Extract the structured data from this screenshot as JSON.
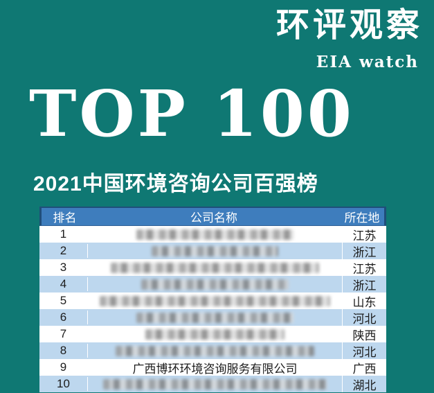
{
  "brand": {
    "title": "环评观察",
    "subtitle": "EIA watch"
  },
  "hero": {
    "title": "TOP 100",
    "subtitle": "2021中国环境咨询公司百强榜"
  },
  "table": {
    "columns": [
      "排名",
      "公司名称",
      "所在地"
    ],
    "rows": [
      {
        "rank": "1",
        "company": "",
        "redacted": true,
        "location": "江苏"
      },
      {
        "rank": "2",
        "company": "",
        "redacted": true,
        "location": "浙江"
      },
      {
        "rank": "3",
        "company": "",
        "redacted": true,
        "location": "江苏"
      },
      {
        "rank": "4",
        "company": "",
        "redacted": true,
        "location": "浙江"
      },
      {
        "rank": "5",
        "company": "",
        "redacted": true,
        "location": "山东"
      },
      {
        "rank": "6",
        "company": "",
        "redacted": true,
        "location": "河北"
      },
      {
        "rank": "7",
        "company": "",
        "redacted": true,
        "location": "陕西"
      },
      {
        "rank": "8",
        "company": "",
        "redacted": true,
        "location": "河北"
      },
      {
        "rank": "9",
        "company": "广西博环环境咨询服务有限公司",
        "redacted": false,
        "location": "广西"
      },
      {
        "rank": "10",
        "company": "",
        "redacted": true,
        "location": "湖北"
      }
    ]
  },
  "colors": {
    "background": "#0f7873",
    "table_header_bg": "#3e7dbd",
    "table_header_border": "#1f4e79",
    "row_alt": "#bdd7ee",
    "row_base": "#ffffff",
    "text_light": "#ffffff",
    "text_dark": "#1c1c1c"
  }
}
